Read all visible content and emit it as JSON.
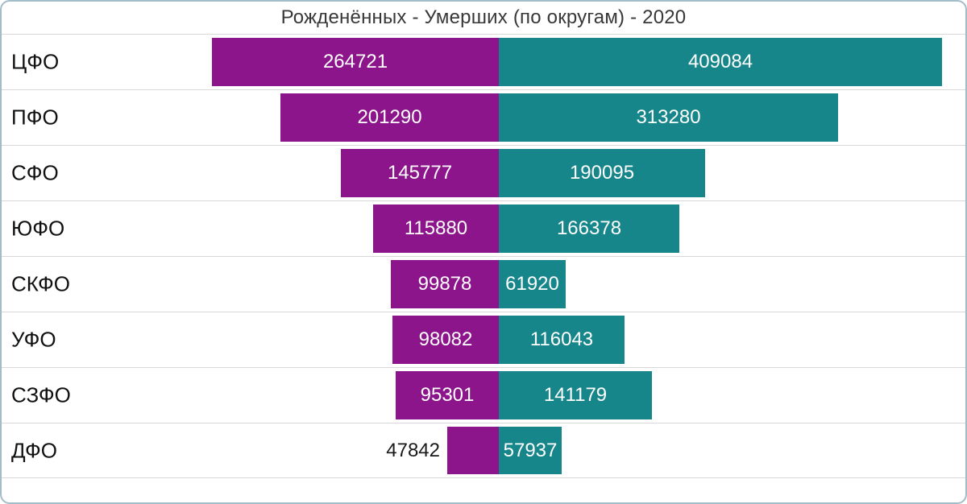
{
  "chart_data": {
    "type": "bar",
    "subtype": "diverging-butterfly",
    "title": "Рожденённых - Умерших (по округам) - 2020",
    "categories": [
      "ЦФО",
      "ПФО",
      "СФО",
      "ЮФО",
      "СКФО",
      "УФО",
      "СЗФО",
      "ДФО"
    ],
    "series": [
      {
        "name": "Рожденённых",
        "side": "left",
        "color": "#8c158c",
        "values": [
          264721,
          201290,
          145777,
          115880,
          99878,
          98082,
          95301,
          47842
        ]
      },
      {
        "name": "Умерших",
        "side": "right",
        "color": "#17868b",
        "values": [
          409084,
          313280,
          190095,
          166378,
          61920,
          116043,
          141179,
          57937
        ]
      }
    ],
    "legend": "none",
    "grid": "horizontal-row-separators",
    "value_labels": "on-bars",
    "label_color_inside": "#ffffff",
    "label_color_outside": "#1a1a1a",
    "separator_color": "#d8d8d8",
    "frame_border_color": "#a3bdc8"
  }
}
